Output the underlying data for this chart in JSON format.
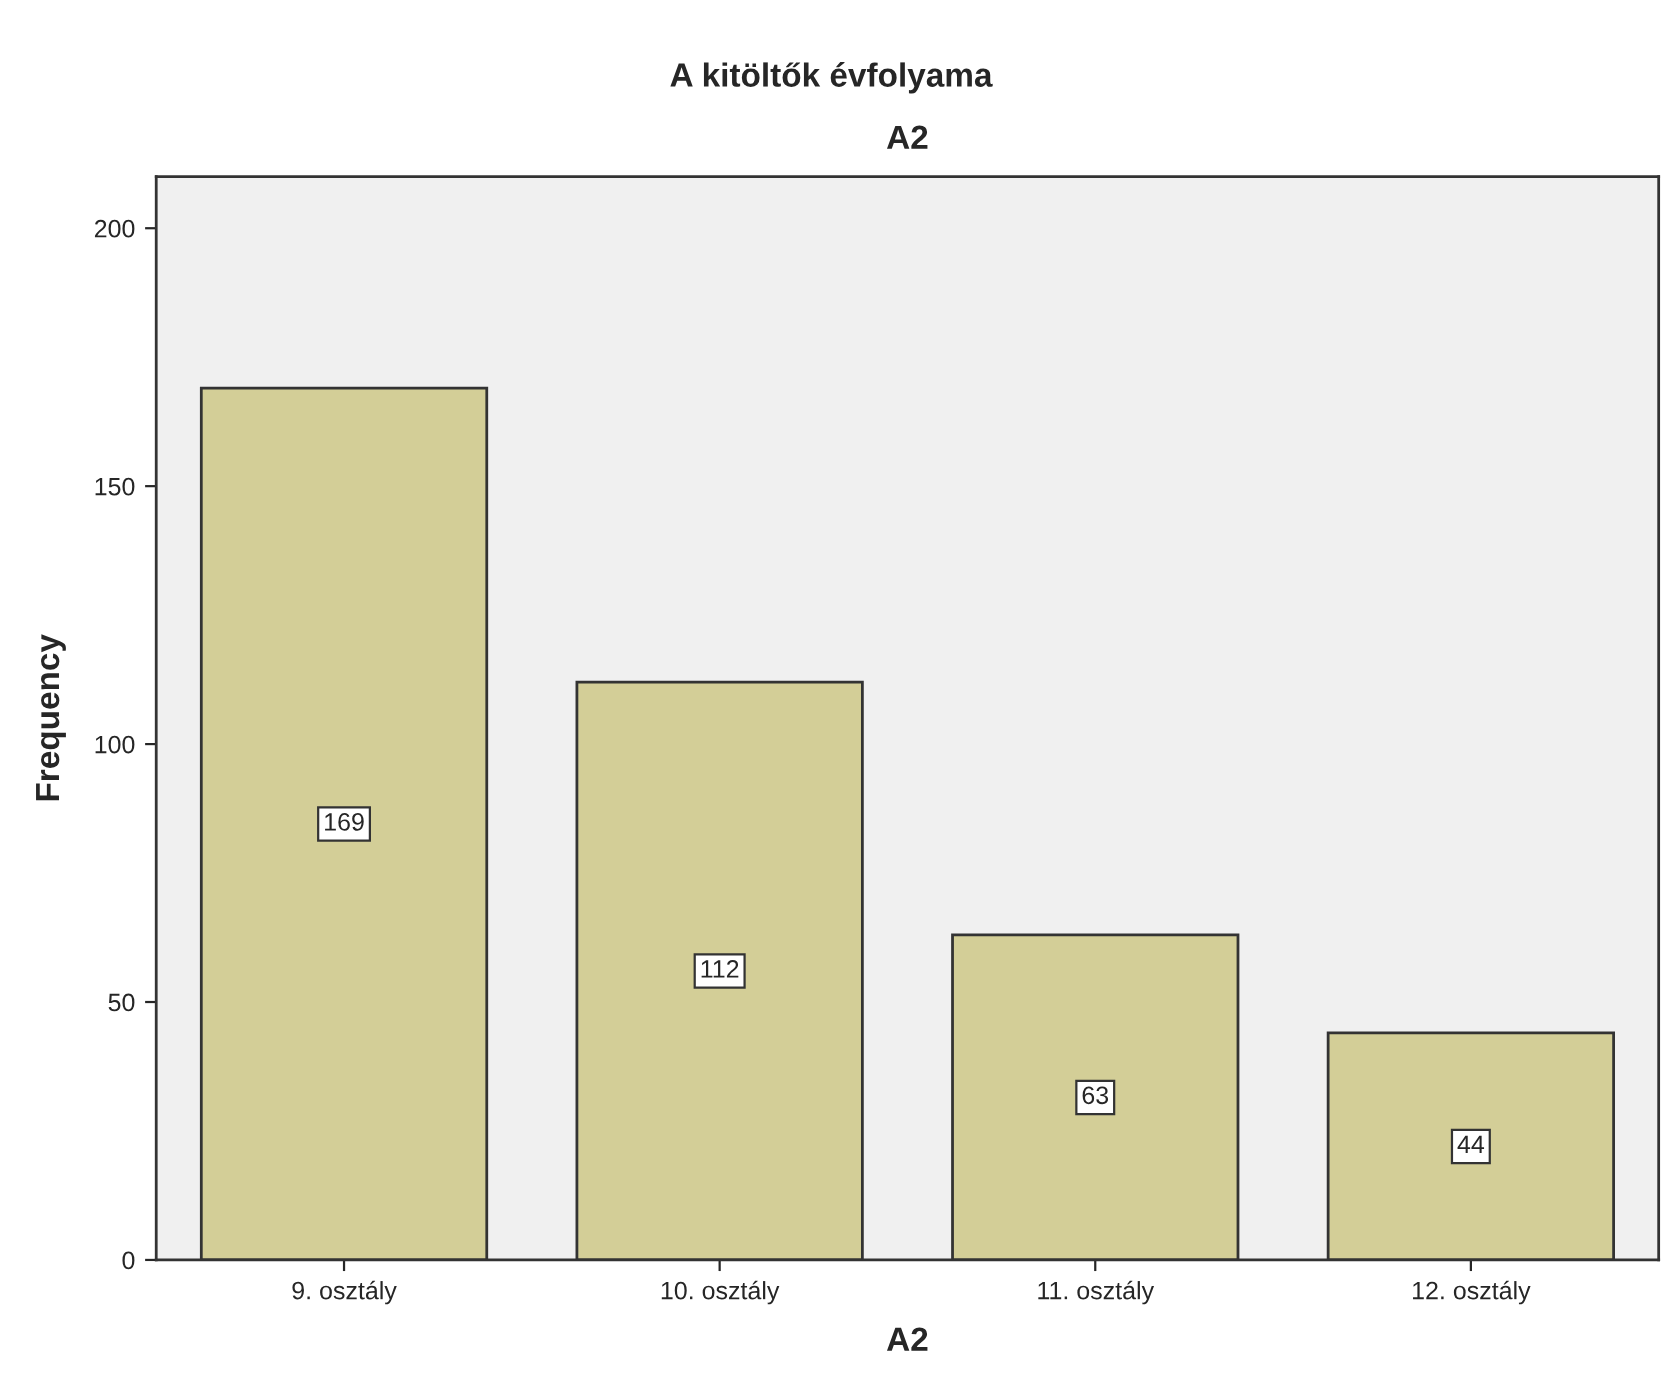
{
  "chart_data": {
    "type": "bar",
    "title": "A kitöltők évfolyama",
    "subtitle": "A2",
    "xlabel": "A2",
    "ylabel": "Frequency",
    "categories": [
      "9. osztály",
      "10. osztály",
      "11. osztály",
      "12. osztály"
    ],
    "values": [
      169,
      112,
      63,
      44
    ],
    "color": "#d3ce97",
    "ylim": [
      0,
      210
    ],
    "yticks": [
      0,
      50,
      100,
      150,
      200
    ],
    "grid": false,
    "data_labels": true
  }
}
